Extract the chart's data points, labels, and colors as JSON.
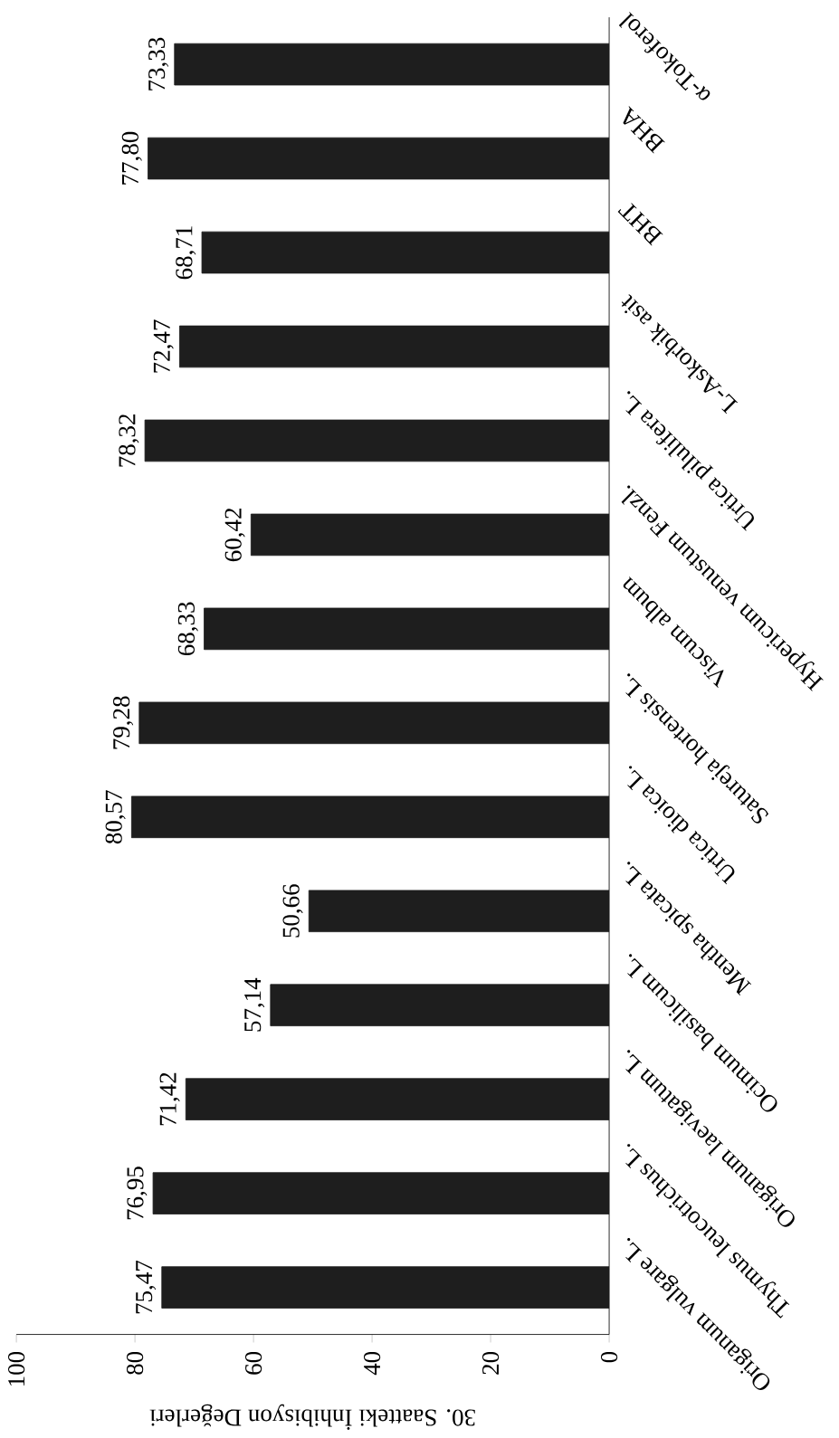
{
  "chart_data": {
    "type": "bar",
    "orientation": "horizontal",
    "xlabel": "30. Saatteki İnhibisyon Değerleri",
    "categories": [
      "α-Tokoferol",
      "BHA",
      "BHT",
      "L-Askorbik asit",
      "Urtica pilulifera L.",
      "Hypericum venustum Fenzl.",
      "Viscum album",
      "Satureja hortensis L.",
      "Urtica dioica L.",
      "Mentha spicata L.",
      "Ocimum basilicum L.",
      "Origanum laevigatum L.",
      "Thymus leucotrichus L.",
      "Origanum vulgare L."
    ],
    "values": [
      73.33,
      77.8,
      68.71,
      72.47,
      78.32,
      60.42,
      68.33,
      79.28,
      80.57,
      50.66,
      57.14,
      71.42,
      76.95,
      75.47
    ],
    "value_labels": [
      "73,33",
      "77,80",
      "68,71",
      "72,47",
      "78,32",
      "60,42",
      "68,33",
      "79,28",
      "80,57",
      "50,66",
      "57,14",
      "71,42",
      "76,95",
      "75,47"
    ],
    "color": "#1e1e1e",
    "xlim": [
      100,
      0
    ],
    "xticks": [
      0,
      20,
      40,
      60,
      80,
      100
    ]
  }
}
